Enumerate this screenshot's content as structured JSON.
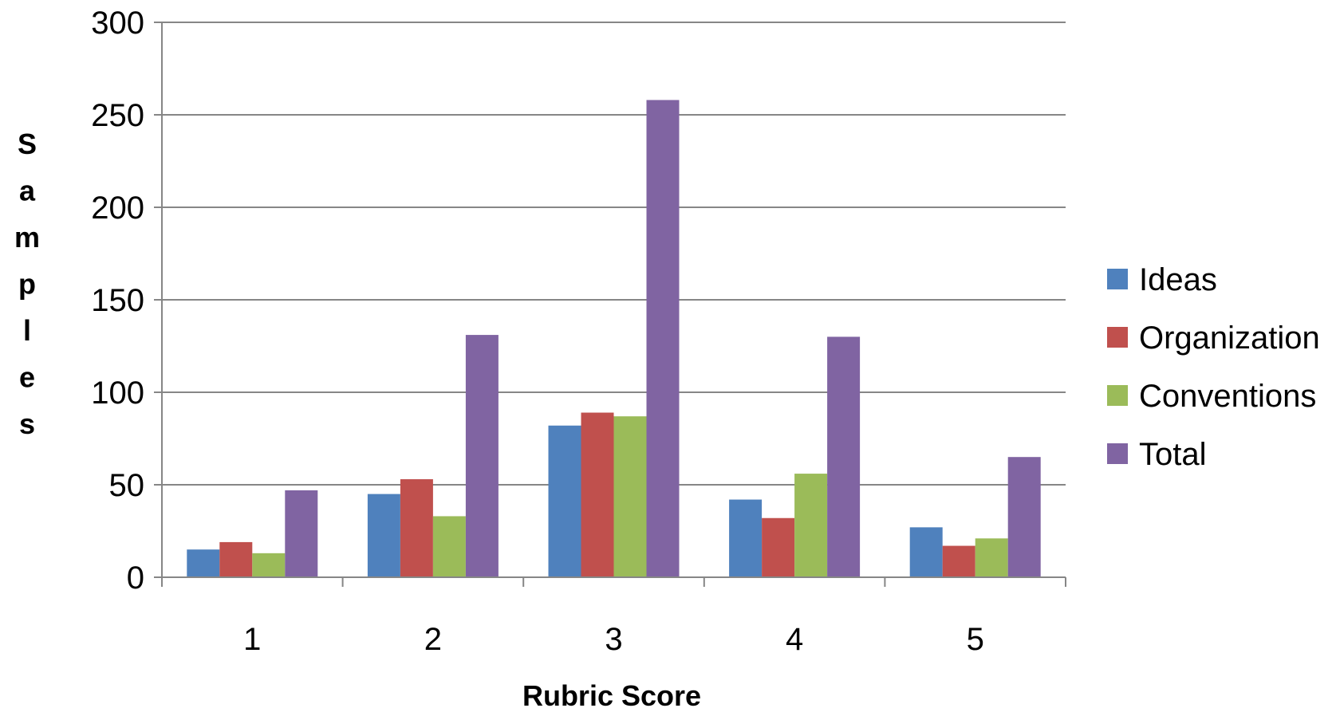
{
  "chart_data": {
    "type": "bar",
    "categories": [
      "1",
      "2",
      "3",
      "4",
      "5"
    ],
    "series": [
      {
        "name": "Ideas",
        "values": [
          15,
          45,
          82,
          42,
          27
        ],
        "color": "#4f81bd"
      },
      {
        "name": "Organization",
        "values": [
          19,
          53,
          89,
          32,
          17
        ],
        "color": "#c0504d"
      },
      {
        "name": "Conventions",
        "values": [
          13,
          33,
          87,
          56,
          21
        ],
        "color": "#9bbb59"
      },
      {
        "name": "Total",
        "values": [
          47,
          131,
          258,
          130,
          65
        ],
        "color": "#8064a2"
      }
    ],
    "xlabel": "Rubric Score",
    "ylabel": "Samples",
    "ylim": [
      0,
      300
    ],
    "yticks": [
      "0",
      "50",
      "100",
      "150",
      "200",
      "250",
      "300"
    ],
    "grid": true,
    "legend_position": "right"
  }
}
